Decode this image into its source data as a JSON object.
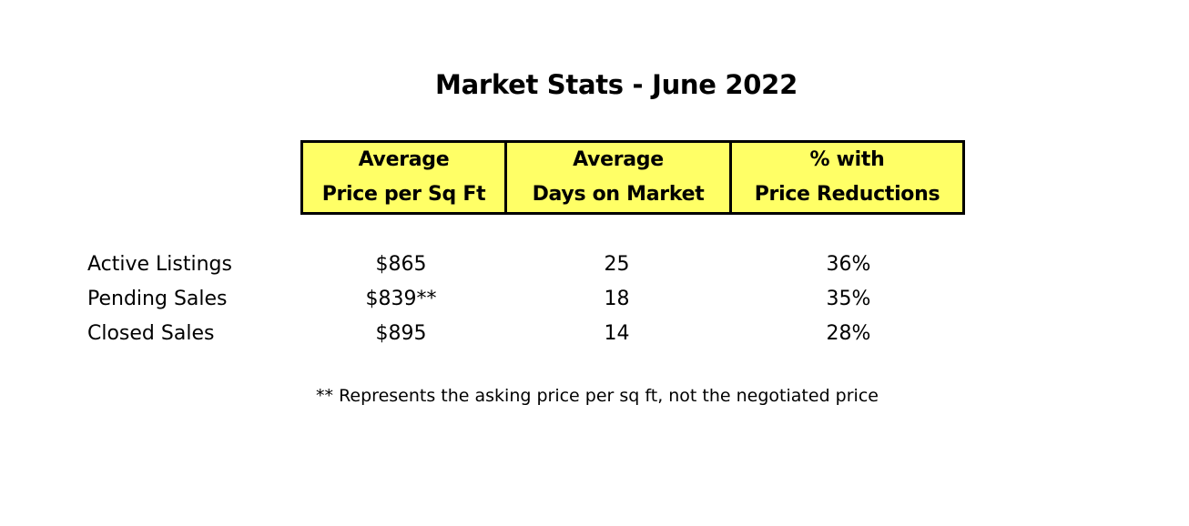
{
  "title": "Market Stats - June 2022",
  "columns": [
    {
      "line1": "Average",
      "line2": "Price per Sq Ft"
    },
    {
      "line1": "Average",
      "line2": "Days on Market"
    },
    {
      "line1": "% with",
      "line2": "Price Reductions"
    }
  ],
  "rows": [
    {
      "label": "Active Listings",
      "price": "$865",
      "days": "25",
      "reductions": "36%"
    },
    {
      "label": "Pending Sales",
      "price": "$839**",
      "days": "18",
      "reductions": "35%"
    },
    {
      "label": "Closed Sales",
      "price": "$895",
      "days": "14",
      "reductions": "28%"
    }
  ],
  "footnote": "** Represents the asking price per sq ft, not the negotiated price",
  "colors": {
    "header_background": "#ffff66",
    "border": "#000000"
  }
}
